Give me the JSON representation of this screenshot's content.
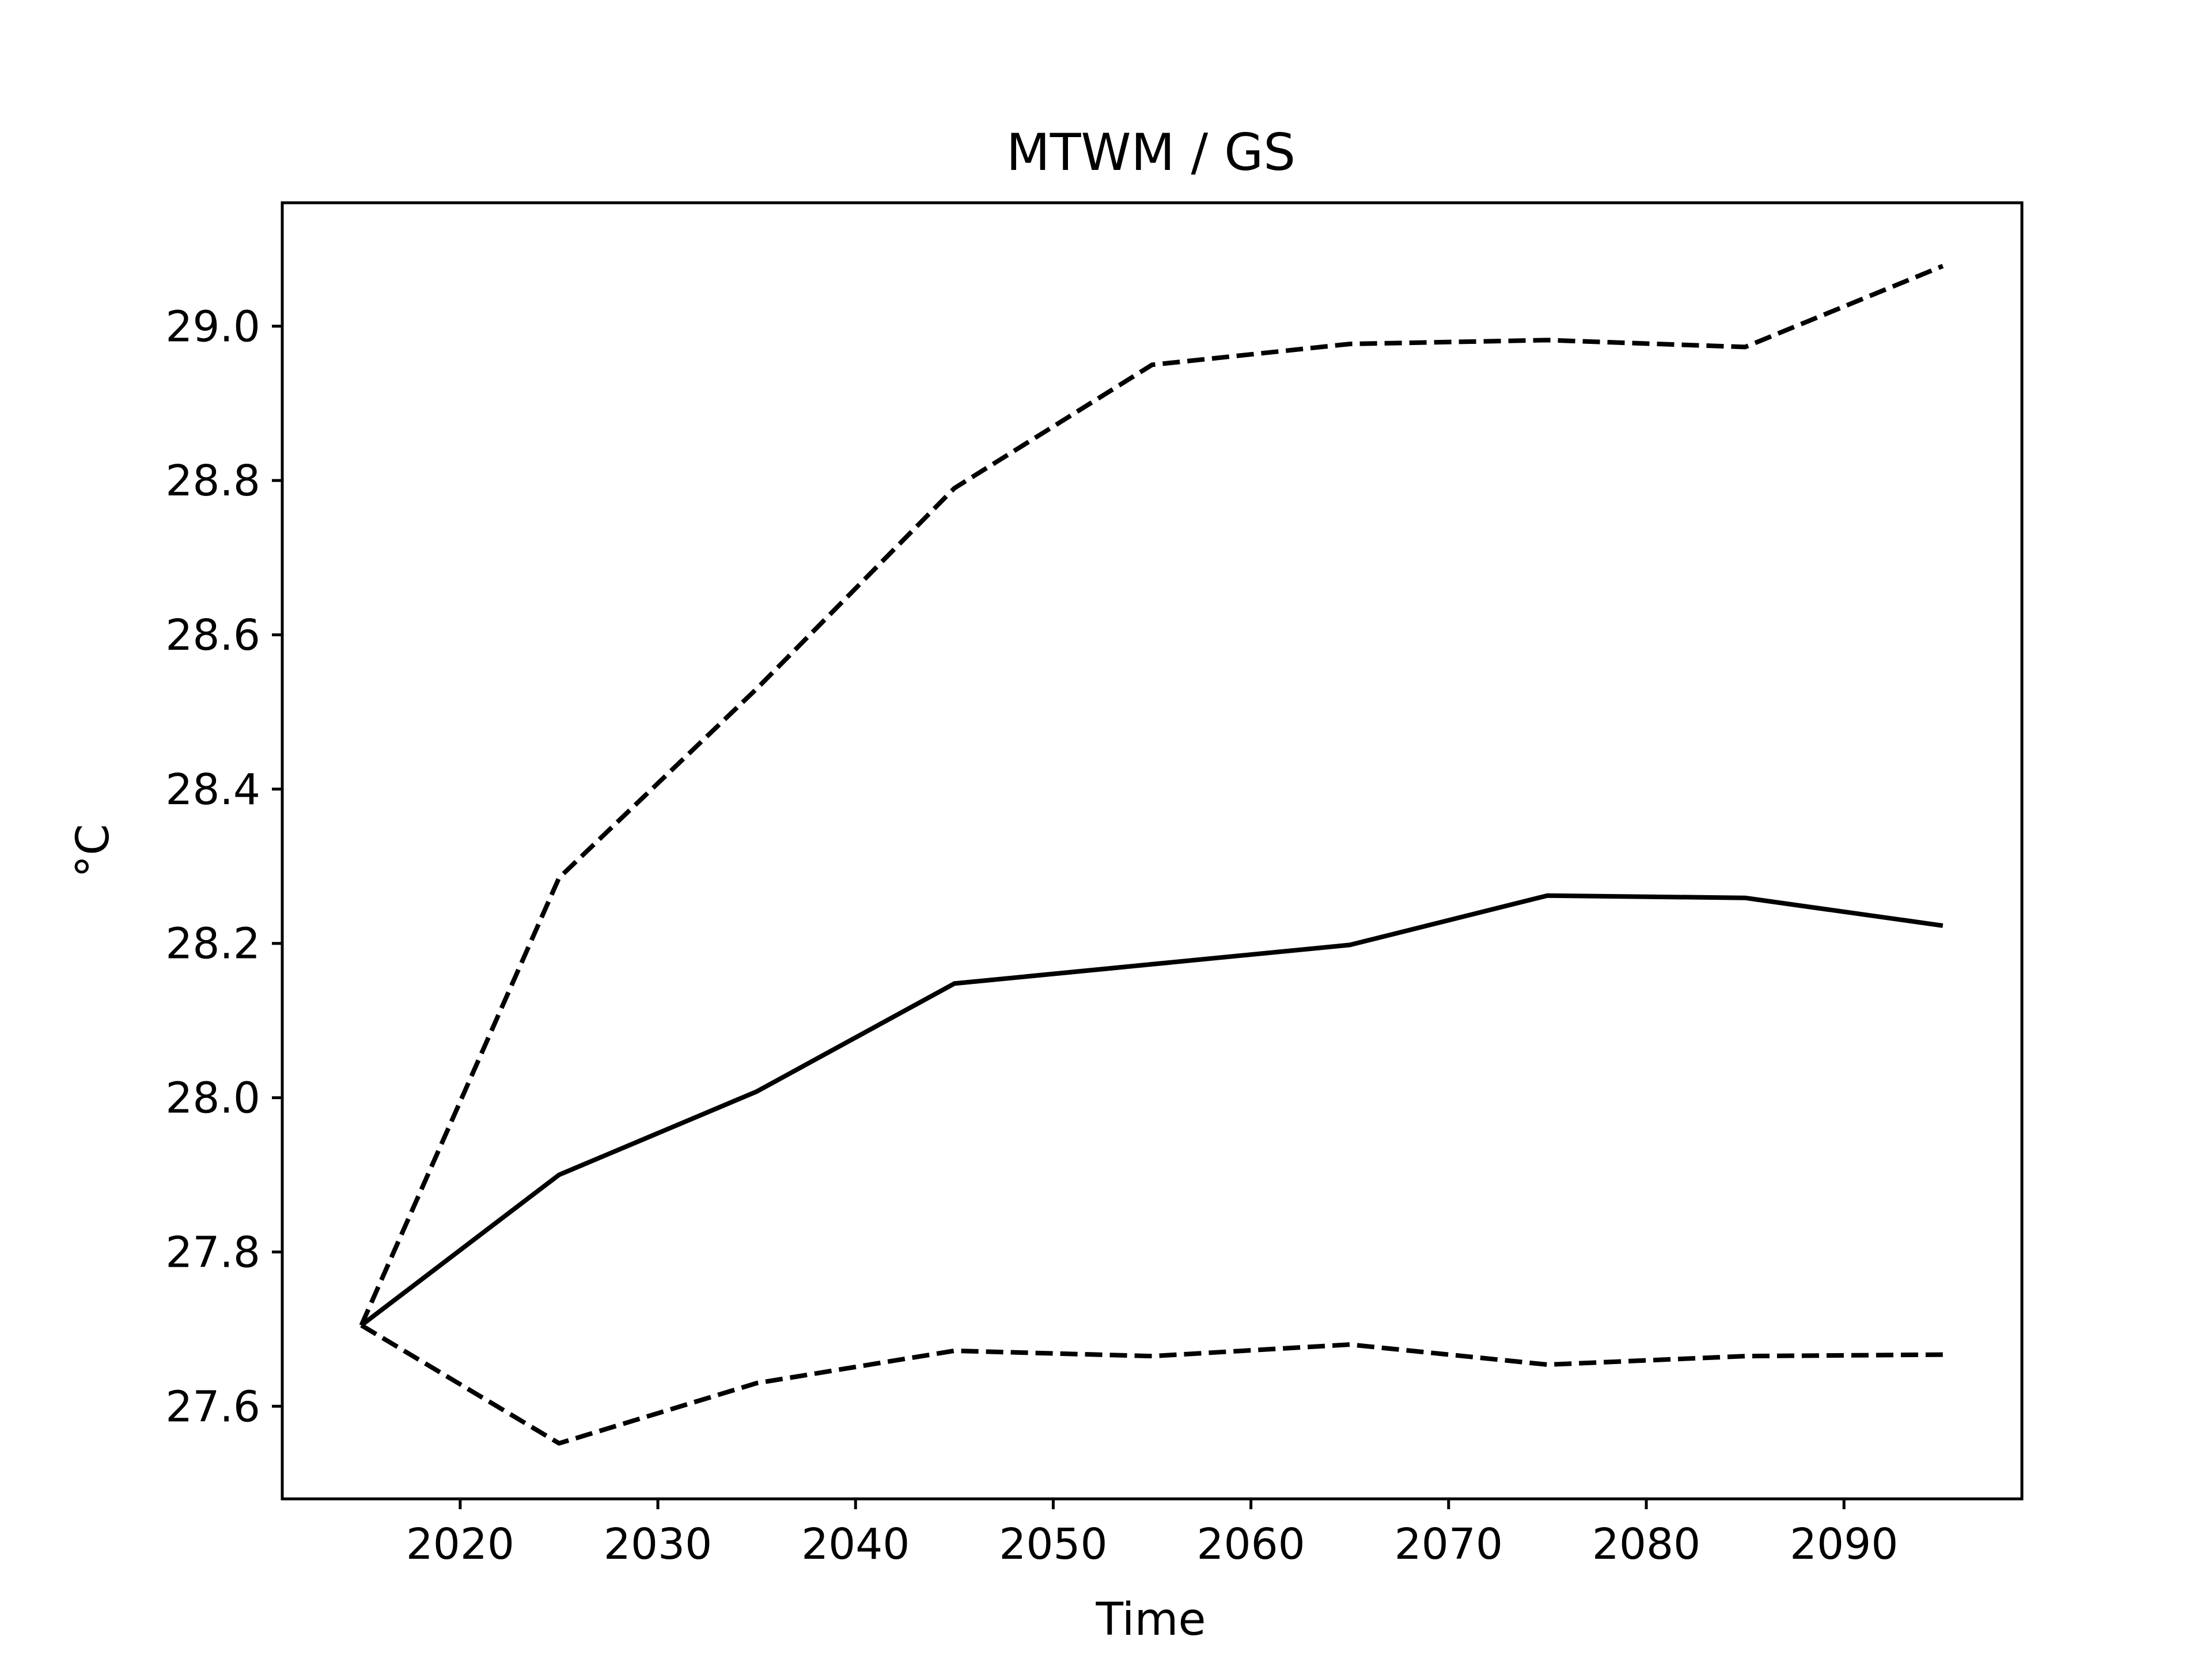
{
  "chart_data": {
    "type": "line",
    "title": "MTWM / GS",
    "xlabel": "Time",
    "ylabel": "°C",
    "xlim": [
      2011,
      2099
    ],
    "ylim": [
      27.48,
      29.16
    ],
    "x_ticks": [
      2020,
      2030,
      2040,
      2050,
      2060,
      2070,
      2080,
      2090
    ],
    "y_ticks": [
      27.6,
      27.8,
      28.0,
      28.2,
      28.4,
      28.6,
      28.8,
      29.0
    ],
    "x_tick_labels": [
      "2020",
      "2030",
      "2040",
      "2050",
      "2060",
      "2070",
      "2080",
      "2090"
    ],
    "y_tick_labels": [
      "27.6",
      "27.8",
      "28.0",
      "28.2",
      "28.4",
      "28.6",
      "28.8",
      "29.0"
    ],
    "grid": false,
    "legend": "none",
    "x": [
      2015,
      2025,
      2035,
      2045,
      2055,
      2065,
      2075,
      2085,
      2095
    ],
    "series": [
      {
        "style": "dashed",
        "color": "#000000",
        "values": [
          27.705,
          28.285,
          28.53,
          28.79,
          28.95,
          28.977,
          28.982,
          28.973,
          29.078
        ]
      },
      {
        "style": "solid",
        "color": "#000000",
        "values": [
          27.705,
          27.9,
          28.008,
          28.148,
          28.173,
          28.198,
          28.262,
          28.259,
          28.223
        ]
      },
      {
        "style": "dashed",
        "color": "#000000",
        "values": [
          27.705,
          27.552,
          27.63,
          27.672,
          27.665,
          27.68,
          27.654,
          27.665,
          27.667
        ]
      }
    ]
  }
}
